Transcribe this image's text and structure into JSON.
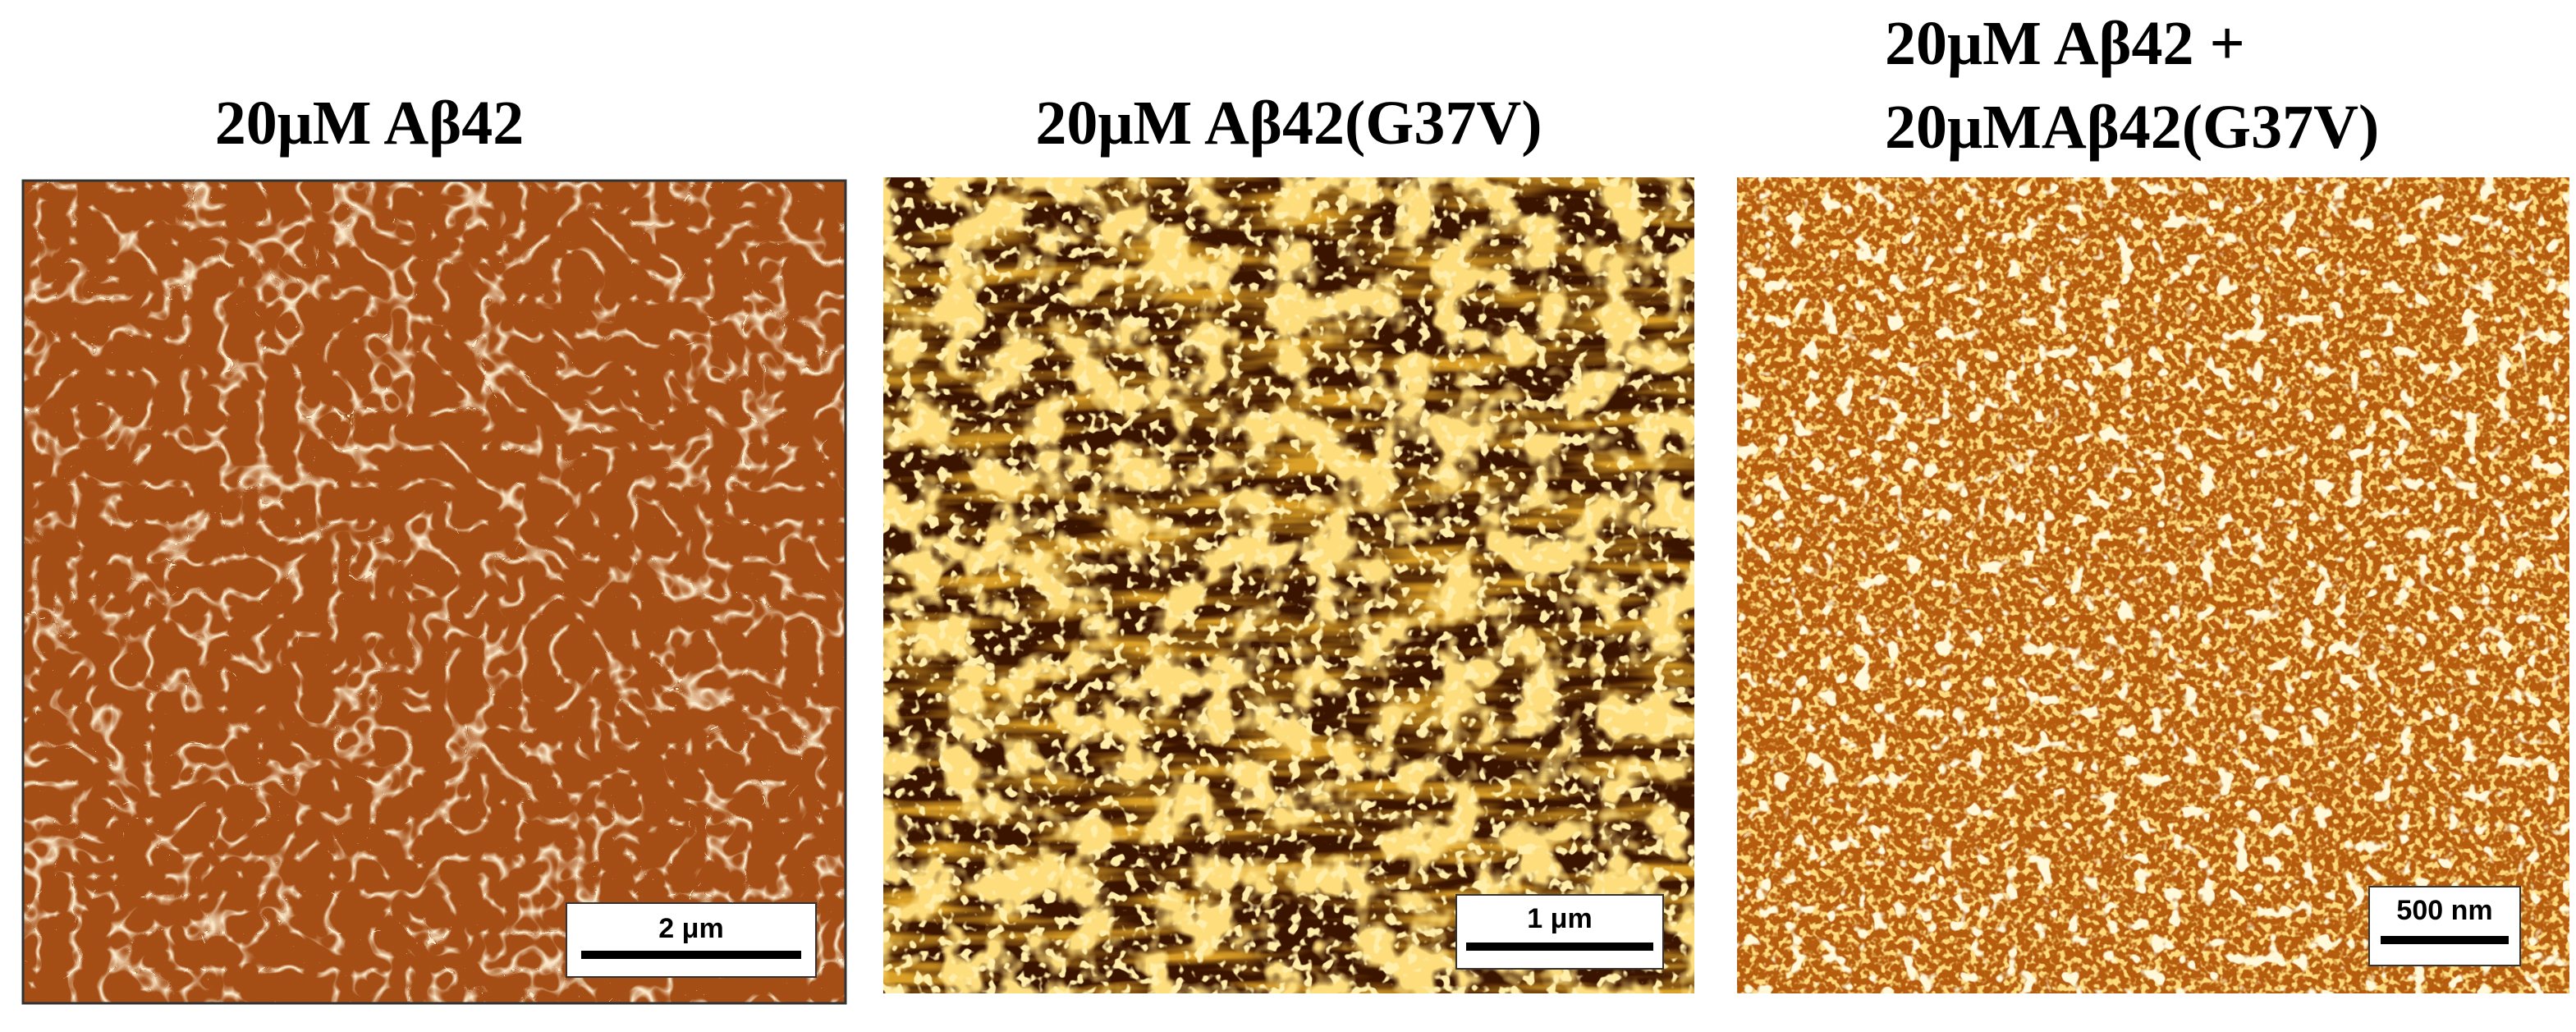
{
  "panels": [
    {
      "title": [
        "20μM Aβ42"
      ],
      "scale_bar": "2 μm"
    },
    {
      "title": [
        "20μM Aβ42(G37V)"
      ],
      "scale_bar": "1 μm"
    },
    {
      "title": [
        "20μM Aβ42 +",
        "20μMAβ42(G37V)"
      ],
      "scale_bar": "500 nm"
    }
  ]
}
